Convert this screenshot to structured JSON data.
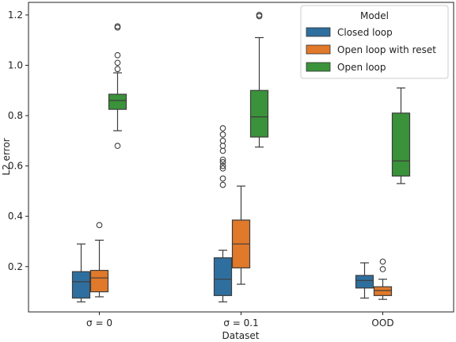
{
  "chart_data": {
    "type": "box",
    "title": "",
    "xlabel": "Dataset",
    "ylabel": "L2 error",
    "categories": [
      "σ = 0",
      "σ = 0.1",
      "OOD"
    ],
    "ylim": [
      0.02,
      1.25
    ],
    "yticks": [
      "0.2",
      "0.4",
      "0.6",
      "0.8",
      "1.0",
      "1.2"
    ],
    "grid": false,
    "legend": {
      "title": "Model",
      "placement": "top-right"
    },
    "series": [
      {
        "name": "Closed loop",
        "color": "#2f6f9f",
        "boxes": [
          {
            "whislo": 0.06,
            "q1": 0.075,
            "med": 0.14,
            "q3": 0.18,
            "whishi": 0.29,
            "fliers": []
          },
          {
            "whislo": 0.06,
            "q1": 0.085,
            "med": 0.15,
            "q3": 0.235,
            "whishi": 0.265,
            "fliers": []
          },
          {
            "whislo": 0.075,
            "q1": 0.115,
            "med": 0.145,
            "q3": 0.165,
            "whishi": 0.215,
            "fliers": []
          }
        ]
      },
      {
        "name": "Open loop with reset",
        "color": "#e0792a",
        "boxes": [
          {
            "whislo": 0.08,
            "q1": 0.1,
            "med": 0.155,
            "q3": 0.185,
            "whishi": 0.305,
            "fliers": [
              0.365
            ]
          },
          {
            "whislo": 0.13,
            "q1": 0.195,
            "med": 0.29,
            "q3": 0.385,
            "whishi": 0.52,
            "fliers": []
          },
          {
            "whislo": 0.07,
            "q1": 0.085,
            "med": 0.105,
            "q3": 0.12,
            "whishi": 0.15,
            "fliers": [
              0.19,
              0.22
            ]
          }
        ]
      },
      {
        "name": "Open loop",
        "color": "#3a923a",
        "boxes": [
          {
            "whislo": 0.74,
            "q1": 0.825,
            "med": 0.86,
            "q3": 0.885,
            "whishi": 0.97,
            "fliers": [
              0.68,
              0.985,
              1.01,
              1.04,
              1.15,
              1.155
            ]
          },
          {
            "whislo": 0.675,
            "q1": 0.715,
            "med": 0.795,
            "q3": 0.9,
            "whishi": 1.11,
            "fliers": [
              1.195,
              1.2
            ]
          },
          {
            "whislo": 0.53,
            "q1": 0.56,
            "med": 0.62,
            "q3": 0.81,
            "whishi": 0.91,
            "fliers": []
          }
        ]
      }
    ],
    "group1_extra_fliers": [
      0.525,
      0.55,
      0.59,
      0.6,
      0.615,
      0.625,
      0.66,
      0.68,
      0.7,
      0.725,
      0.75
    ]
  }
}
